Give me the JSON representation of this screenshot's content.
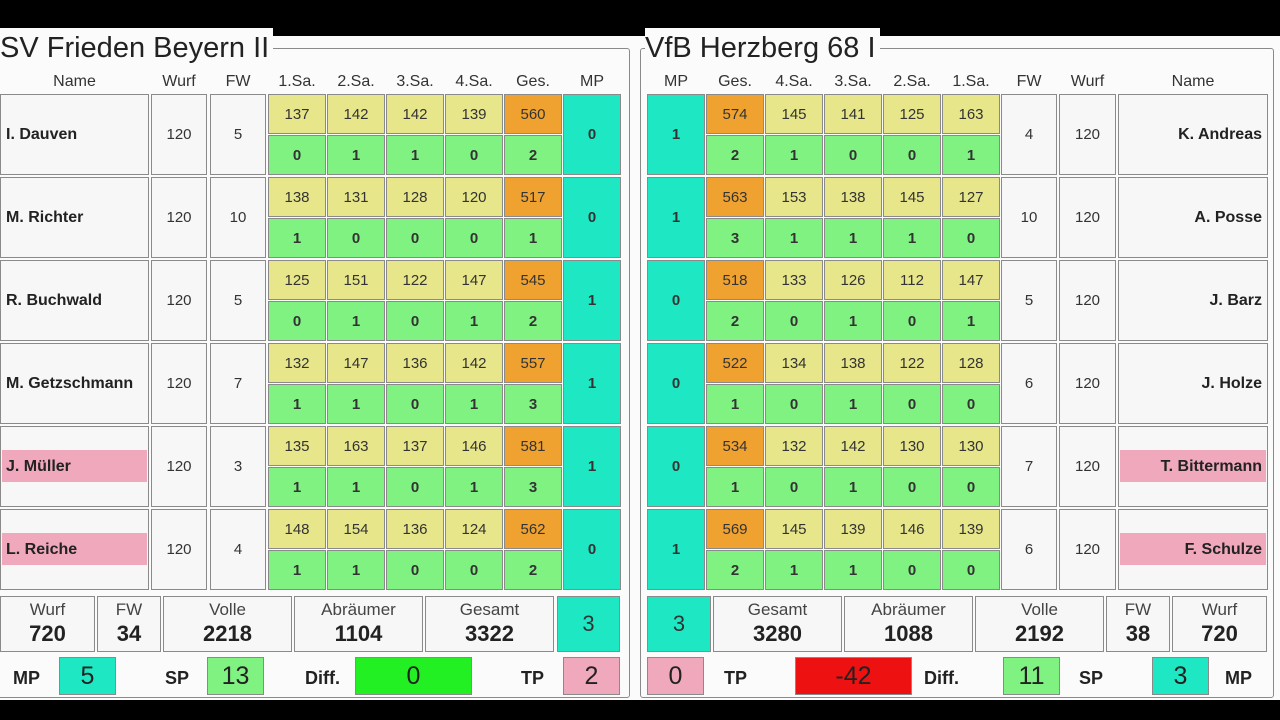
{
  "left": {
    "team": "SV Frieden Beyern II",
    "headers": {
      "name": "Name",
      "wurf": "Wurf",
      "fw": "FW",
      "sa1": "1.Sa.",
      "sa2": "2.Sa.",
      "sa3": "3.Sa.",
      "sa4": "4.Sa.",
      "ges": "Ges.",
      "mp": "MP"
    },
    "players": [
      {
        "name": "I. Dauven",
        "wurf": "120",
        "fw": "5",
        "sets": [
          "137",
          "142",
          "142",
          "139"
        ],
        "ges": "560",
        "sp": [
          "0",
          "1",
          "1",
          "0"
        ],
        "sp_total": "2",
        "mp": "0",
        "sub": false
      },
      {
        "name": "M. Richter",
        "wurf": "120",
        "fw": "10",
        "sets": [
          "138",
          "131",
          "128",
          "120"
        ],
        "ges": "517",
        "sp": [
          "1",
          "0",
          "0",
          "0"
        ],
        "sp_total": "1",
        "mp": "0",
        "sub": false
      },
      {
        "name": "R. Buchwald",
        "wurf": "120",
        "fw": "5",
        "sets": [
          "125",
          "151",
          "122",
          "147"
        ],
        "ges": "545",
        "sp": [
          "0",
          "1",
          "0",
          "1"
        ],
        "sp_total": "2",
        "mp": "1",
        "sub": false
      },
      {
        "name": "M. Getzschmann",
        "wurf": "120",
        "fw": "7",
        "sets": [
          "132",
          "147",
          "136",
          "142"
        ],
        "ges": "557",
        "sp": [
          "1",
          "1",
          "0",
          "1"
        ],
        "sp_total": "3",
        "mp": "1",
        "sub": false
      },
      {
        "name": "J. Müller",
        "wurf": "120",
        "fw": "3",
        "sets": [
          "135",
          "163",
          "137",
          "146"
        ],
        "ges": "581",
        "sp": [
          "1",
          "1",
          "0",
          "1"
        ],
        "sp_total": "3",
        "mp": "1",
        "sub": true
      },
      {
        "name": "L. Reiche",
        "wurf": "120",
        "fw": "4",
        "sets": [
          "148",
          "154",
          "136",
          "124"
        ],
        "ges": "562",
        "sp": [
          "1",
          "1",
          "0",
          "0"
        ],
        "sp_total": "2",
        "mp": "0",
        "sub": true
      }
    ],
    "summary": {
      "wurf_label": "Wurf",
      "wurf": "720",
      "fw_label": "FW",
      "fw": "34",
      "volle_label": "Volle",
      "volle": "2218",
      "abraeumer_label": "Abräumer",
      "abraeumer": "1104",
      "gesamt_label": "Gesamt",
      "gesamt": "3322",
      "mp": "3"
    },
    "footer": {
      "mp_label": "MP",
      "mp": "5",
      "sp_label": "SP",
      "sp": "13",
      "diff_label": "Diff.",
      "diff": "0",
      "tp_label": "TP",
      "tp": "2"
    }
  },
  "right": {
    "team": "VfB Herzberg 68 I",
    "headers": {
      "name": "Name",
      "wurf": "Wurf",
      "fw": "FW",
      "sa1": "1.Sa.",
      "sa2": "2.Sa.",
      "sa3": "3.Sa.",
      "sa4": "4.Sa.",
      "ges": "Ges.",
      "mp": "MP"
    },
    "players": [
      {
        "name": "K. Andreas",
        "wurf": "120",
        "fw": "4",
        "sets": [
          "163",
          "125",
          "141",
          "145"
        ],
        "ges": "574",
        "sp": [
          "1",
          "0",
          "0",
          "1"
        ],
        "sp_total": "2",
        "mp": "1",
        "sub": false
      },
      {
        "name": "A. Posse",
        "wurf": "120",
        "fw": "10",
        "sets": [
          "127",
          "145",
          "138",
          "153"
        ],
        "ges": "563",
        "sp": [
          "0",
          "1",
          "1",
          "1"
        ],
        "sp_total": "3",
        "mp": "1",
        "sub": false
      },
      {
        "name": "J. Barz",
        "wurf": "120",
        "fw": "5",
        "sets": [
          "147",
          "112",
          "126",
          "133"
        ],
        "ges": "518",
        "sp": [
          "1",
          "0",
          "1",
          "0"
        ],
        "sp_total": "2",
        "mp": "0",
        "sub": false
      },
      {
        "name": "J. Holze",
        "wurf": "120",
        "fw": "6",
        "sets": [
          "128",
          "122",
          "138",
          "134"
        ],
        "ges": "522",
        "sp": [
          "0",
          "0",
          "1",
          "0"
        ],
        "sp_total": "1",
        "mp": "0",
        "sub": false
      },
      {
        "name": "T. Bittermann",
        "wurf": "120",
        "fw": "7",
        "sets": [
          "130",
          "130",
          "142",
          "132"
        ],
        "ges": "534",
        "sp": [
          "0",
          "0",
          "1",
          "0"
        ],
        "sp_total": "1",
        "mp": "0",
        "sub": true
      },
      {
        "name": "F. Schulze",
        "wurf": "120",
        "fw": "6",
        "sets": [
          "139",
          "146",
          "139",
          "145"
        ],
        "ges": "569",
        "sp": [
          "0",
          "0",
          "1",
          "1"
        ],
        "sp_total": "2",
        "mp": "1",
        "sub": true
      }
    ],
    "summary": {
      "wurf_label": "Wurf",
      "wurf": "720",
      "fw_label": "FW",
      "fw": "38",
      "volle_label": "Volle",
      "volle": "2192",
      "abraeumer_label": "Abräumer",
      "abraeumer": "1088",
      "gesamt_label": "Gesamt",
      "gesamt": "3280",
      "mp": "3"
    },
    "footer": {
      "mp_label": "MP",
      "mp": "3",
      "sp_label": "SP",
      "sp": "11",
      "diff_label": "Diff.",
      "diff": "-42",
      "tp_label": "TP",
      "tp": "0"
    }
  },
  "colors": {
    "set_score": "#e8e68a",
    "set_point": "#80f282",
    "total": "#f0a230",
    "match_point": "#1ee8c4",
    "substitute": "#f0a8bd",
    "diff_zero": "#22f022",
    "diff_negative": "#ee1111",
    "tp": "#f0a8bd"
  }
}
